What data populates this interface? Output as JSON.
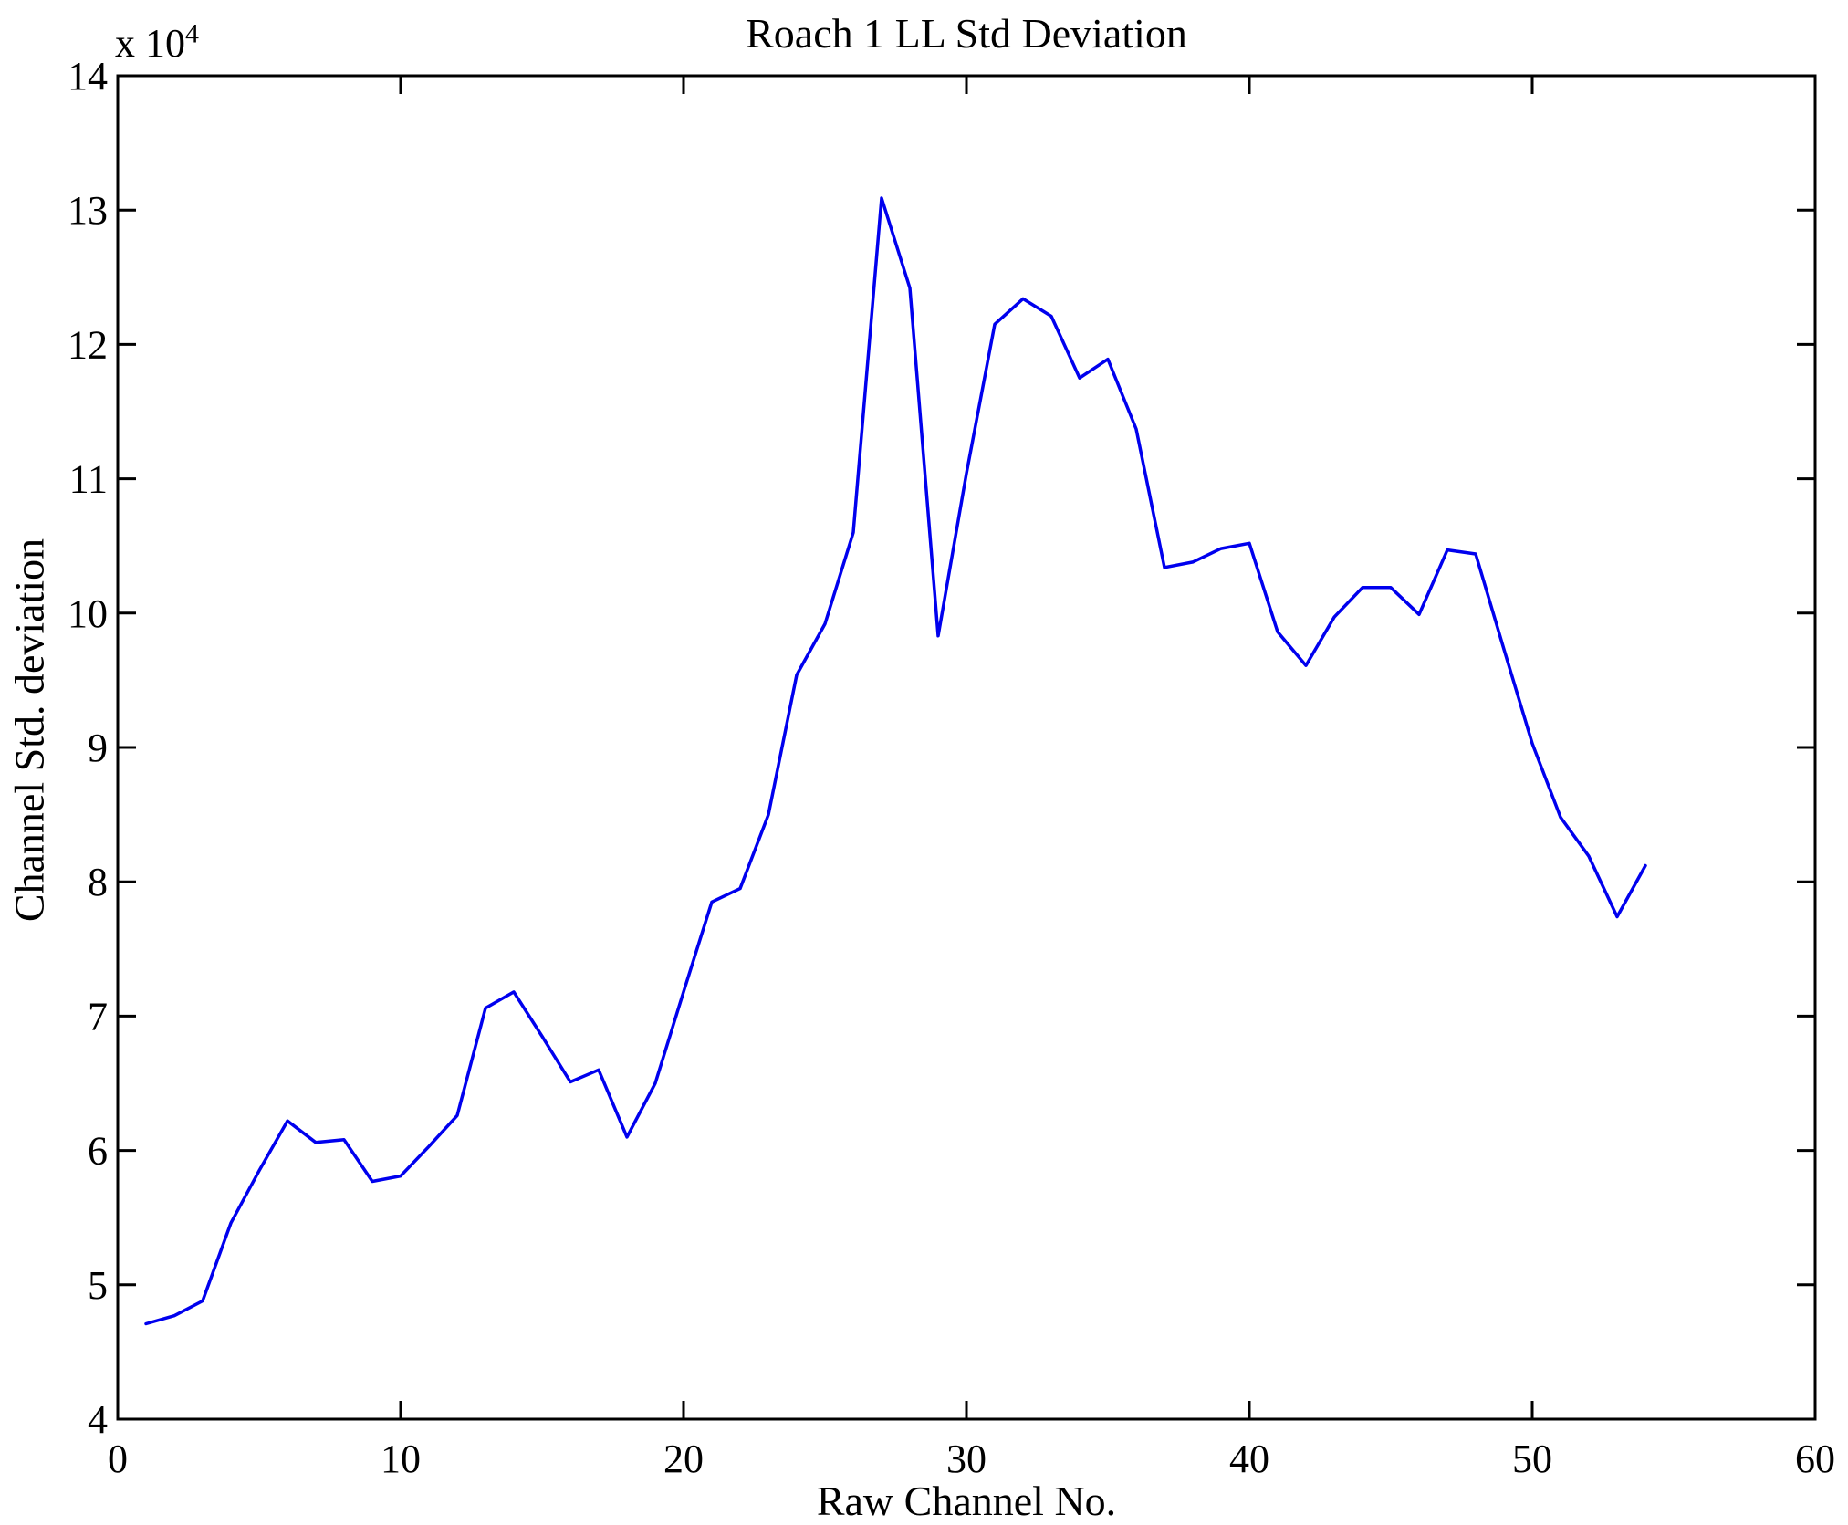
{
  "chart_data": {
    "type": "line",
    "title": "Roach 1 LL Std Deviation",
    "xlabel": "Raw Channel No.",
    "ylabel": "Channel Std. deviation",
    "y_exponent_prefix": "x 10",
    "y_exponent": "4",
    "grid": false,
    "legend": null,
    "line_color": "#0000EE",
    "axis_color": "#000000",
    "background_color": "#FFFFFF",
    "xlim": [
      0,
      60
    ],
    "ylim": [
      40000,
      140000
    ],
    "xtick_values": [
      0,
      10,
      20,
      30,
      40,
      50,
      60
    ],
    "xtick_labels": [
      "0",
      "10",
      "20",
      "30",
      "40",
      "50",
      "60"
    ],
    "ytick_values": [
      40000,
      50000,
      60000,
      70000,
      80000,
      90000,
      100000,
      110000,
      120000,
      130000,
      140000
    ],
    "ytick_labels": [
      "4",
      "5",
      "6",
      "7",
      "8",
      "9",
      "10",
      "11",
      "12",
      "13",
      "14"
    ],
    "x": [
      1,
      2,
      3,
      4,
      5,
      6,
      7,
      8,
      9,
      10,
      11,
      12,
      13,
      14,
      15,
      16,
      17,
      18,
      19,
      20,
      21,
      22,
      23,
      24,
      25,
      26,
      27,
      28,
      29,
      30,
      31,
      32,
      33,
      34,
      35,
      36,
      37,
      38,
      39,
      40,
      41,
      42,
      43,
      44,
      45,
      46,
      47,
      48,
      49,
      50,
      51,
      52,
      53,
      54
    ],
    "y": [
      47100,
      47700,
      48800,
      54600,
      58500,
      62200,
      60600,
      60800,
      57700,
      58100,
      60300,
      62600,
      70600,
      71800,
      68500,
      65100,
      66000,
      61000,
      65000,
      71800,
      78500,
      79500,
      85000,
      95400,
      99200,
      106000,
      130900,
      124200,
      98300,
      110400,
      121500,
      123400,
      122100,
      117500,
      118900,
      113700,
      103400,
      103800,
      104800,
      105200,
      98600,
      96100,
      99700,
      101900,
      101900,
      99900,
      104700,
      104400,
      97300,
      90300,
      84800,
      81900,
      77400,
      81200
    ]
  }
}
